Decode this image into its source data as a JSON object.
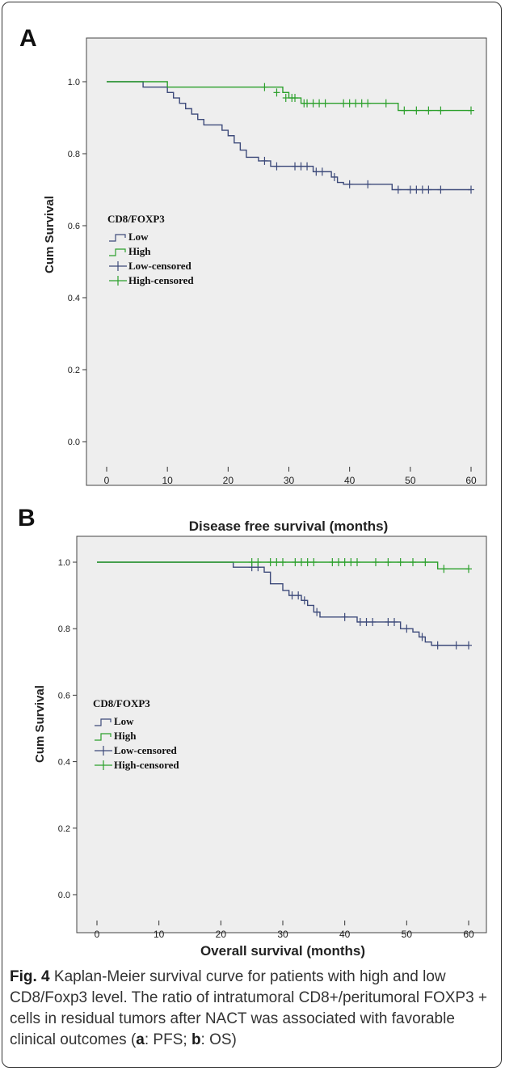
{
  "caption": {
    "fig_label": "Fig. 4",
    "text_before_a": " Kaplan-Meier survival curve for patients with high and low CD8/Foxp3 level. The ratio of intratumoral CD8+/peritumoral FOXP3 + cells in residual tumors after NACT was associated with favorable clinical outcomes (",
    "a_letter": "a",
    "a_text": ": PFS; ",
    "b_letter": "b",
    "b_text": ": OS)"
  },
  "colors": {
    "low": "#3d4a7a",
    "high": "#2ca02c",
    "plot_bg": "#eeeeee"
  },
  "chart_data": [
    {
      "type": "line",
      "panel": "A",
      "xlabel": "Disease free survival (months)",
      "ylabel": "Cum Survival",
      "xlim": [
        0,
        60
      ],
      "ylim": [
        0,
        1.0
      ],
      "x_ticks": [
        "0",
        "10",
        "20",
        "30",
        "40",
        "50",
        "60"
      ],
      "y_ticks": [
        "0.0",
        "0.2",
        "0.4",
        "0.6",
        "0.8",
        "1.0"
      ],
      "legend": {
        "title": "CD8/FOXP3",
        "entries": [
          "Low",
          "High",
          "Low-censored",
          "High-censored"
        ],
        "placement": "center-left"
      },
      "series": [
        {
          "name": "Low",
          "steps": [
            [
              0,
              1.0
            ],
            [
              6,
              0.985
            ],
            [
              10,
              0.97
            ],
            [
              11,
              0.955
            ],
            [
              12,
              0.94
            ],
            [
              13,
              0.925
            ],
            [
              14,
              0.91
            ],
            [
              15,
              0.895
            ],
            [
              16,
              0.88
            ],
            [
              19,
              0.865
            ],
            [
              20,
              0.85
            ],
            [
              21,
              0.83
            ],
            [
              22,
              0.81
            ],
            [
              23,
              0.79
            ],
            [
              25,
              0.78
            ],
            [
              27,
              0.765
            ],
            [
              34,
              0.75
            ],
            [
              37,
              0.735
            ],
            [
              38,
              0.72
            ],
            [
              39,
              0.715
            ],
            [
              47,
              0.7
            ],
            [
              60,
              0.7
            ]
          ],
          "censored": [
            [
              26,
              0.78
            ],
            [
              28,
              0.765
            ],
            [
              31,
              0.765
            ],
            [
              32,
              0.765
            ],
            [
              33,
              0.765
            ],
            [
              34.5,
              0.75
            ],
            [
              35.5,
              0.75
            ],
            [
              37.5,
              0.735
            ],
            [
              40,
              0.715
            ],
            [
              43,
              0.715
            ],
            [
              48,
              0.7
            ],
            [
              50,
              0.7
            ],
            [
              51,
              0.7
            ],
            [
              52,
              0.7
            ],
            [
              53,
              0.7
            ],
            [
              55,
              0.7
            ],
            [
              60,
              0.7
            ]
          ]
        },
        {
          "name": "High",
          "steps": [
            [
              0,
              1.0
            ],
            [
              10,
              0.985
            ],
            [
              29,
              0.97
            ],
            [
              30,
              0.955
            ],
            [
              32,
              0.94
            ],
            [
              48,
              0.92
            ],
            [
              60,
              0.92
            ]
          ],
          "censored": [
            [
              26,
              0.985
            ],
            [
              28,
              0.97
            ],
            [
              29.5,
              0.955
            ],
            [
              30.5,
              0.955
            ],
            [
              31,
              0.955
            ],
            [
              32.5,
              0.94
            ],
            [
              33,
              0.94
            ],
            [
              34,
              0.94
            ],
            [
              35,
              0.94
            ],
            [
              36,
              0.94
            ],
            [
              39,
              0.94
            ],
            [
              40,
              0.94
            ],
            [
              41,
              0.94
            ],
            [
              42,
              0.94
            ],
            [
              43,
              0.94
            ],
            [
              46,
              0.94
            ],
            [
              49,
              0.92
            ],
            [
              51,
              0.92
            ],
            [
              53,
              0.92
            ],
            [
              55,
              0.92
            ],
            [
              60,
              0.92
            ]
          ]
        }
      ]
    },
    {
      "type": "line",
      "panel": "B",
      "xlabel": "Overall survival (months)",
      "ylabel": "Cum Survival",
      "xlim": [
        0,
        60
      ],
      "ylim": [
        0,
        1.0
      ],
      "x_ticks": [
        "0",
        "10",
        "20",
        "30",
        "40",
        "50",
        "60"
      ],
      "y_ticks": [
        "0.0",
        "0.2",
        "0.4",
        "0.6",
        "0.8",
        "1.0"
      ],
      "legend": {
        "title": "CD8/FOXP3",
        "entries": [
          "Low",
          "High",
          "Low-censored",
          "High-censored"
        ],
        "placement": "center-left"
      },
      "series": [
        {
          "name": "Low",
          "steps": [
            [
              0,
              1.0
            ],
            [
              22,
              0.985
            ],
            [
              27,
              0.97
            ],
            [
              28,
              0.935
            ],
            [
              30,
              0.915
            ],
            [
              31,
              0.9
            ],
            [
              33,
              0.885
            ],
            [
              34,
              0.87
            ],
            [
              35,
              0.85
            ],
            [
              36,
              0.835
            ],
            [
              42,
              0.82
            ],
            [
              49,
              0.8
            ],
            [
              51,
              0.79
            ],
            [
              52,
              0.775
            ],
            [
              53,
              0.76
            ],
            [
              54,
              0.75
            ],
            [
              60,
              0.75
            ]
          ],
          "censored": [
            [
              25,
              0.985
            ],
            [
              26,
              0.985
            ],
            [
              31.5,
              0.9
            ],
            [
              32.5,
              0.9
            ],
            [
              33.5,
              0.885
            ],
            [
              35.5,
              0.85
            ],
            [
              40,
              0.835
            ],
            [
              42.5,
              0.82
            ],
            [
              43.5,
              0.82
            ],
            [
              44.5,
              0.82
            ],
            [
              47,
              0.82
            ],
            [
              48,
              0.82
            ],
            [
              50,
              0.8
            ],
            [
              52.5,
              0.775
            ],
            [
              55,
              0.75
            ],
            [
              58,
              0.75
            ],
            [
              60,
              0.75
            ]
          ]
        },
        {
          "name": "High",
          "steps": [
            [
              0,
              1.0
            ],
            [
              55,
              0.98
            ],
            [
              60,
              0.98
            ]
          ],
          "censored": [
            [
              25,
              1.0
            ],
            [
              26,
              1.0
            ],
            [
              28,
              1.0
            ],
            [
              29,
              1.0
            ],
            [
              30,
              1.0
            ],
            [
              32,
              1.0
            ],
            [
              33,
              1.0
            ],
            [
              34,
              1.0
            ],
            [
              35,
              1.0
            ],
            [
              38,
              1.0
            ],
            [
              39,
              1.0
            ],
            [
              40,
              1.0
            ],
            [
              41,
              1.0
            ],
            [
              42,
              1.0
            ],
            [
              45,
              1.0
            ],
            [
              47,
              1.0
            ],
            [
              49,
              1.0
            ],
            [
              51,
              1.0
            ],
            [
              53,
              1.0
            ],
            [
              56,
              0.98
            ],
            [
              60,
              0.98
            ]
          ]
        }
      ]
    }
  ]
}
